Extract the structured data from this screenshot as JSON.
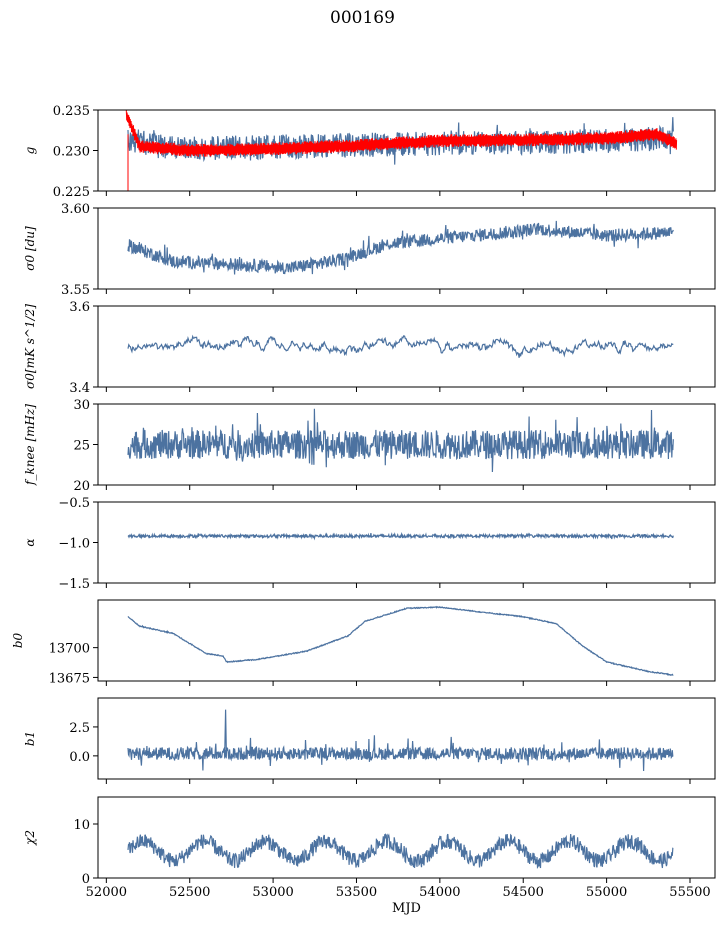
{
  "title": "000169",
  "xlabel": "MJD",
  "xticks": [
    52000,
    52500,
    53000,
    53500,
    54000,
    54500,
    55000,
    55500
  ],
  "xlim": [
    51950,
    55650
  ],
  "colors": {
    "series": "#4c72a0",
    "model": "#ff0000",
    "axes": "#000000"
  },
  "chart_data": [
    {
      "type": "line",
      "ylabel": "g",
      "ylim": [
        0.225,
        0.235
      ],
      "yticks": [
        0.225,
        0.23,
        0.235
      ],
      "ytick_labels": [
        "0.225",
        "0.230",
        "0.235"
      ],
      "series": [
        {
          "color": "#4c72a0",
          "kind": "noisy",
          "x_range": [
            52130,
            55400
          ],
          "mean": 0.2305,
          "amp": 0.0015,
          "spike": 0.0007,
          "anchors": [
            [
              52130,
              0.2315
            ],
            [
              52300,
              0.2305
            ],
            [
              52700,
              0.2303
            ],
            [
              53200,
              0.2305
            ],
            [
              53800,
              0.2308
            ],
            [
              54500,
              0.231
            ],
            [
              55000,
              0.2312
            ],
            [
              55400,
              0.2315
            ]
          ]
        },
        {
          "color": "#ff0000",
          "kind": "band",
          "x_range": [
            52120,
            55420
          ],
          "band_width": 0.0008,
          "anchors": [
            [
              52120,
              0.2345
            ],
            [
              52200,
              0.2305
            ],
            [
              52500,
              0.23
            ],
            [
              53000,
              0.2302
            ],
            [
              53500,
              0.2306
            ],
            [
              54000,
              0.2312
            ],
            [
              54500,
              0.2313
            ],
            [
              55000,
              0.2315
            ],
            [
              55300,
              0.232
            ],
            [
              55420,
              0.2308
            ]
          ]
        }
      ]
    },
    {
      "type": "line",
      "ylabel": "σ0 [du]",
      "ylim": [
        3.55,
        3.6
      ],
      "yticks": [
        3.55,
        3.6
      ],
      "ytick_labels": [
        "3.55",
        "3.60"
      ],
      "series": [
        {
          "color": "#4c72a0",
          "kind": "noisy",
          "x_range": [
            52130,
            55400
          ],
          "mean": 3.575,
          "amp": 0.004,
          "spike": 0.003,
          "anchors": [
            [
              52130,
              3.577
            ],
            [
              52400,
              3.567
            ],
            [
              52800,
              3.565
            ],
            [
              53100,
              3.563
            ],
            [
              53400,
              3.568
            ],
            [
              53700,
              3.578
            ],
            [
              54200,
              3.583
            ],
            [
              54600,
              3.587
            ],
            [
              55000,
              3.583
            ],
            [
              55400,
              3.585
            ]
          ]
        }
      ]
    },
    {
      "type": "line",
      "ylabel": "σ0[mK s^1/2]",
      "ylim": [
        3.4,
        3.6
      ],
      "yticks": [
        3.4,
        3.6
      ],
      "ytick_labels": [
        "3.4",
        "3.6"
      ],
      "series": [
        {
          "color": "#4c72a0",
          "kind": "smooth",
          "x_range": [
            52130,
            55400
          ],
          "mean": 3.5,
          "amp": 0.025,
          "anchors": [
            [
              52130,
              3.5
            ],
            [
              55400,
              3.5
            ]
          ]
        }
      ]
    },
    {
      "type": "line",
      "ylabel": "f_knee [mHz]",
      "ylim": [
        20,
        30
      ],
      "yticks": [
        20,
        25,
        30
      ],
      "ytick_labels": [
        "20",
        "25",
        "30"
      ],
      "series": [
        {
          "color": "#4c72a0",
          "kind": "noisy",
          "x_range": [
            52130,
            55400
          ],
          "mean": 25,
          "amp": 1.8,
          "spike": 1.5,
          "anchors": [
            [
              52130,
              25
            ],
            [
              55400,
              25
            ]
          ]
        }
      ]
    },
    {
      "type": "line",
      "ylabel": "α",
      "ylim": [
        -1.5,
        -0.5
      ],
      "yticks": [
        -1.5,
        -1.0,
        -0.5
      ],
      "ytick_labels": [
        "−1.5",
        "−1.0",
        "−0.5"
      ],
      "series": [
        {
          "color": "#4c72a0",
          "kind": "noisy",
          "x_range": [
            52130,
            55400
          ],
          "mean": -0.92,
          "amp": 0.018,
          "spike": 0.01,
          "anchors": [
            [
              52130,
              -0.92
            ],
            [
              55400,
              -0.92
            ]
          ]
        }
      ]
    },
    {
      "type": "line",
      "ylabel": "b0",
      "ylim": [
        13672,
        13740
      ],
      "yticks": [
        13675,
        13700
      ],
      "ytick_labels": [
        "13675",
        "13700"
      ],
      "series": [
        {
          "color": "#4c72a0",
          "kind": "noisy",
          "x_range": [
            52130,
            55400
          ],
          "mean": 13705,
          "amp": 0.4,
          "spike": 0.2,
          "anchors": [
            [
              52130,
              13726
            ],
            [
              52200,
              13718
            ],
            [
              52400,
              13712
            ],
            [
              52600,
              13695
            ],
            [
              52700,
              13693
            ],
            [
              52720,
              13688
            ],
            [
              52900,
              13690
            ],
            [
              53200,
              13697
            ],
            [
              53450,
              13710
            ],
            [
              53550,
              13722
            ],
            [
              53800,
              13733
            ],
            [
              54000,
              13734
            ],
            [
              54300,
              13729
            ],
            [
              54500,
              13726
            ],
            [
              54700,
              13720
            ],
            [
              54850,
              13702
            ],
            [
              55000,
              13688
            ],
            [
              55250,
              13680
            ],
            [
              55400,
              13677
            ]
          ]
        }
      ]
    },
    {
      "type": "line",
      "ylabel": "b1",
      "ylim": [
        -2.0,
        5.0
      ],
      "yticks": [
        0,
        2.5
      ],
      "ytick_labels": [
        "0.0",
        "2.5"
      ],
      "series": [
        {
          "color": "#4c72a0",
          "kind": "noisy",
          "x_range": [
            52130,
            55400
          ],
          "mean": 0.2,
          "amp": 0.55,
          "spike": 0.6,
          "anchors": [
            [
              52130,
              0.2
            ],
            [
              55400,
              0.2
            ]
          ]
        }
      ]
    },
    {
      "type": "line",
      "ylabel": "χ2",
      "ylim": [
        0,
        15
      ],
      "yticks": [
        0,
        10
      ],
      "ytick_labels": [
        "0",
        "10"
      ],
      "series": [
        {
          "color": "#4c72a0",
          "kind": "seasonal",
          "x_range": [
            52130,
            55400
          ],
          "mean": 5,
          "amp": 1.8,
          "period": 365,
          "noise": 1.4,
          "anchors": [
            [
              52130,
              5
            ],
            [
              55400,
              5
            ]
          ]
        }
      ]
    }
  ]
}
